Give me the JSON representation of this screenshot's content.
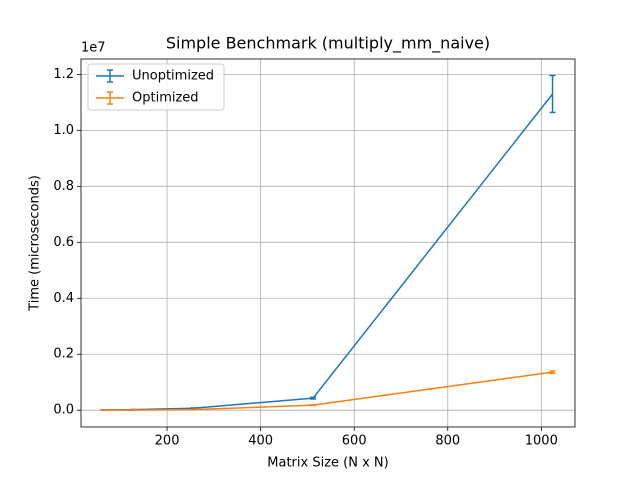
{
  "chart_data": {
    "type": "errorbar-line",
    "title": "Simple Benchmark (multiply_mm_naive)",
    "xlabel": "Matrix Size (N x N)",
    "ylabel": "Time (microseconds)",
    "offset_text": "1e7",
    "x": [
      64,
      128,
      256,
      512,
      1024
    ],
    "series": [
      {
        "name": "Unoptimized",
        "color": "#1f77b4",
        "values": [
          10000,
          20000,
          70000,
          430000,
          11300000
        ],
        "errors": [
          5000,
          5000,
          10000,
          30000,
          660000
        ]
      },
      {
        "name": "Optimized",
        "color": "#ff7f0e",
        "values": [
          2000,
          5000,
          20000,
          180000,
          1360000
        ],
        "errors": [
          2000,
          2000,
          5000,
          10000,
          40000
        ]
      }
    ],
    "xlim": [
      16,
      1072
    ],
    "ylim": [
      -600000,
      12550000
    ],
    "xticks": [
      200,
      400,
      600,
      800,
      1000
    ],
    "yticks": [
      {
        "value": 0,
        "label": "0.0"
      },
      {
        "value": 2000000,
        "label": "0.2"
      },
      {
        "value": 4000000,
        "label": "0.4"
      },
      {
        "value": 6000000,
        "label": "0.6"
      },
      {
        "value": 8000000,
        "label": "0.8"
      },
      {
        "value": 10000000,
        "label": "1.0"
      },
      {
        "value": 12000000,
        "label": "1.2"
      }
    ],
    "grid": true,
    "legend": "upper left"
  }
}
